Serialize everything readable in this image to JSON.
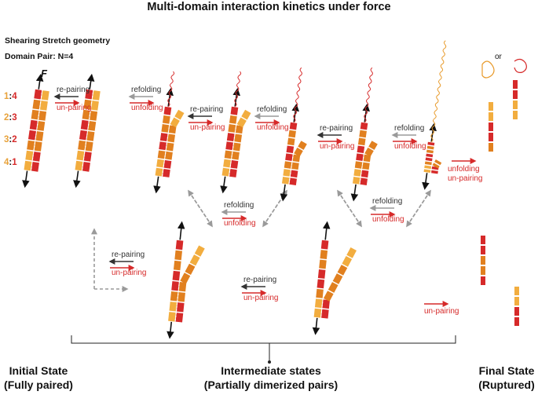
{
  "title": "Multi-domain interaction kinetics under force",
  "geometry_label": "Shearing Stretch geometry",
  "domain_pair_label": "Domain Pair: N=4",
  "force_label": "F",
  "pair_labels": [
    {
      "a": "1",
      "b": "4"
    },
    {
      "a": "2",
      "b": "3"
    },
    {
      "a": "3",
      "b": "2"
    },
    {
      "a": "4",
      "b": "1"
    }
  ],
  "pair_separator": ":",
  "transitions": {
    "re_pairing": "re-pairing",
    "un_pairing": "un-pairing",
    "refolding": "refolding",
    "unfolding": "unfolding",
    "or": "or"
  },
  "bottom": {
    "initial_title": "Initial State",
    "initial_sub": "(Fully paired)",
    "intermediate_title": "Intermediate states",
    "intermediate_sub": "(Partially dimerized pairs)",
    "final_title": "Final State",
    "final_sub": "(Ruptured)"
  },
  "colors": {
    "dark_orange": "#e1801f",
    "light_orange": "#f2ad3f",
    "red": "#d62a2a",
    "unfold_orange": "#e89a2a",
    "arrow_dark": "#333333",
    "arrow_gray": "#9a9a9a",
    "text_red": "#d62a2a"
  }
}
